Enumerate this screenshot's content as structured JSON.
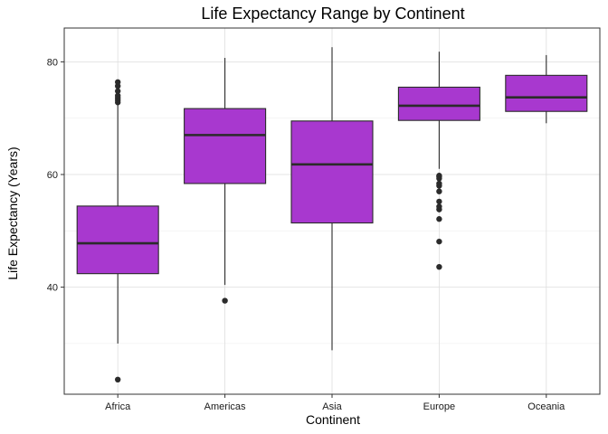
{
  "chart_data": {
    "type": "boxplot",
    "title": "Life Expectancy Range by Continent",
    "xlabel": "Continent",
    "ylabel": "Life Expectancy (Years)",
    "categories": [
      "Africa",
      "Americas",
      "Asia",
      "Europe",
      "Oceania"
    ],
    "y_ticks": [
      40,
      60,
      80
    ],
    "ylim": [
      21,
      86
    ],
    "grid": true,
    "box_fill": "#A838CF",
    "line_color": "#2b2b2b",
    "boxes": [
      {
        "category": "Africa",
        "min": 30.0,
        "q1": 42.4,
        "median": 47.8,
        "q3": 54.4,
        "max": 76.4,
        "outliers": [
          23.6,
          72.8,
          73.2,
          73.6,
          74.0,
          74.8,
          75.7,
          76.4
        ]
      },
      {
        "category": "Americas",
        "min": 40.4,
        "q1": 58.4,
        "median": 67.0,
        "q3": 71.7,
        "max": 80.7,
        "outliers": [
          37.6
        ]
      },
      {
        "category": "Asia",
        "min": 28.8,
        "q1": 51.4,
        "median": 61.8,
        "q3": 69.5,
        "max": 82.6,
        "outliers": []
      },
      {
        "category": "Europe",
        "min": 61.0,
        "q1": 69.6,
        "median": 72.2,
        "q3": 75.5,
        "max": 81.8,
        "outliers": [
          43.6,
          48.1,
          52.1,
          53.8,
          54.3,
          55.2,
          57.0,
          58.0,
          58.4,
          59.3,
          59.6,
          59.8
        ]
      },
      {
        "category": "Oceania",
        "min": 69.1,
        "q1": 71.2,
        "median": 73.7,
        "q3": 77.6,
        "max": 81.2,
        "outliers": []
      }
    ]
  }
}
